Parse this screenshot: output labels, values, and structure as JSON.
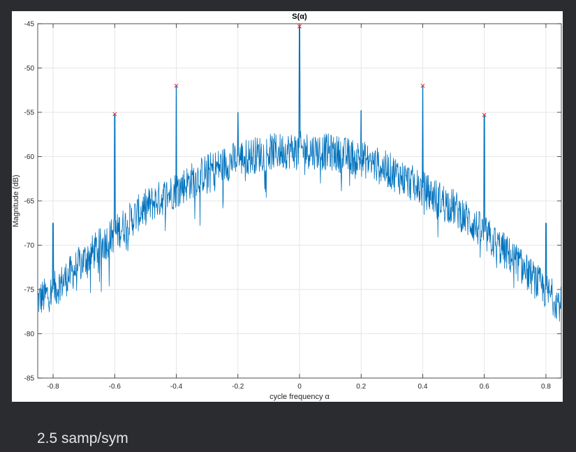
{
  "caption": "2.5 samp/sym",
  "chart_data": {
    "type": "line",
    "title": "S(α)",
    "xlabel": "cycle frequency α",
    "ylabel": "Magnitude (dB)",
    "xlim": [
      -0.85,
      0.85
    ],
    "ylim": [
      -85,
      -45
    ],
    "xticks": [
      -0.8,
      -0.6,
      -0.4,
      -0.2,
      0,
      0.2,
      0.4,
      0.6,
      0.8
    ],
    "xtick_labels": [
      "-0.8",
      "-0.6",
      "-0.4",
      "-0.2",
      "0",
      "0.2",
      "0.4",
      "0.6",
      "0.8"
    ],
    "yticks": [
      -85,
      -80,
      -75,
      -70,
      -65,
      -60,
      -55,
      -50,
      -45
    ],
    "ytick_labels": [
      "-85",
      "-80",
      "-75",
      "-70",
      "-65",
      "-60",
      "-55",
      "-50",
      "-45"
    ],
    "grid": true,
    "series": [
      {
        "type": "noisy-spectrum",
        "color": "#0072bd",
        "envelope": {
          "x": [
            -0.85,
            -0.8,
            -0.7,
            -0.6,
            -0.5,
            -0.4,
            -0.3,
            -0.2,
            -0.1,
            0,
            0.1,
            0.2,
            0.3,
            0.4,
            0.5,
            0.6,
            0.7,
            0.8,
            0.85
          ],
          "y": [
            -76,
            -75,
            -71.5,
            -68.5,
            -65.5,
            -63.5,
            -61.5,
            -60,
            -59.3,
            -59,
            -59.3,
            -60,
            -61.5,
            -63.5,
            -65.5,
            -68.5,
            -71.5,
            -75,
            -76.5
          ]
        },
        "spikes": [
          {
            "x": -0.8,
            "y": -67.5
          },
          {
            "x": -0.6,
            "y": -55.2
          },
          {
            "x": -0.4,
            "y": -52
          },
          {
            "x": -0.2,
            "y": -55
          },
          {
            "x": 0,
            "y": -45.3
          },
          {
            "x": 0.2,
            "y": -54.8
          },
          {
            "x": 0.4,
            "y": -52
          },
          {
            "x": 0.6,
            "y": -55.3
          },
          {
            "x": 0.8,
            "y": -67.5
          }
        ]
      }
    ],
    "peaks": {
      "marker": "x",
      "color": "#e8242a",
      "x": [
        -0.6,
        -0.4,
        0,
        0.4,
        0.6
      ],
      "y": [
        -55.2,
        -52,
        -45.3,
        -52,
        -55.3
      ]
    }
  }
}
